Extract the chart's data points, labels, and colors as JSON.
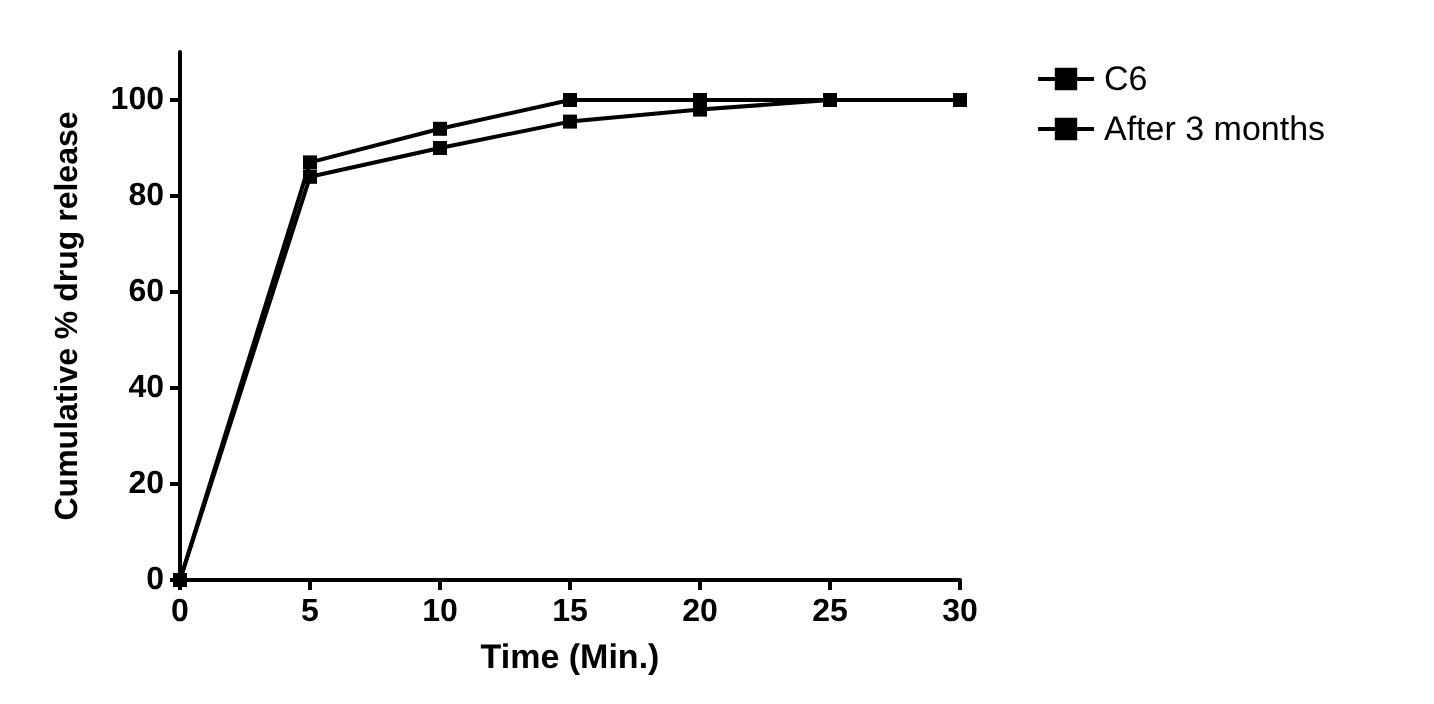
{
  "chart_data": {
    "type": "line",
    "xlabel": "Time (Min.)",
    "ylabel": "Cumulative % drug release",
    "x": [
      0,
      5,
      10,
      15,
      20,
      25,
      30
    ],
    "series": [
      {
        "name": "C6",
        "color": "#000000",
        "values": [
          0,
          87,
          94,
          100,
          100,
          100,
          100
        ]
      },
      {
        "name": "After 3 months",
        "color": "#000000",
        "values": [
          0,
          84,
          90,
          95.5,
          98,
          100,
          100
        ]
      }
    ],
    "xlim": [
      0,
      30
    ],
    "xticks": [
      0,
      5,
      10,
      15,
      20,
      25,
      30
    ],
    "ylim": [
      0,
      110
    ],
    "yticks": [
      0,
      20,
      40,
      60,
      80,
      100
    ],
    "grid": false,
    "marker": "square",
    "legend": "right",
    "line_style": "solid"
  }
}
